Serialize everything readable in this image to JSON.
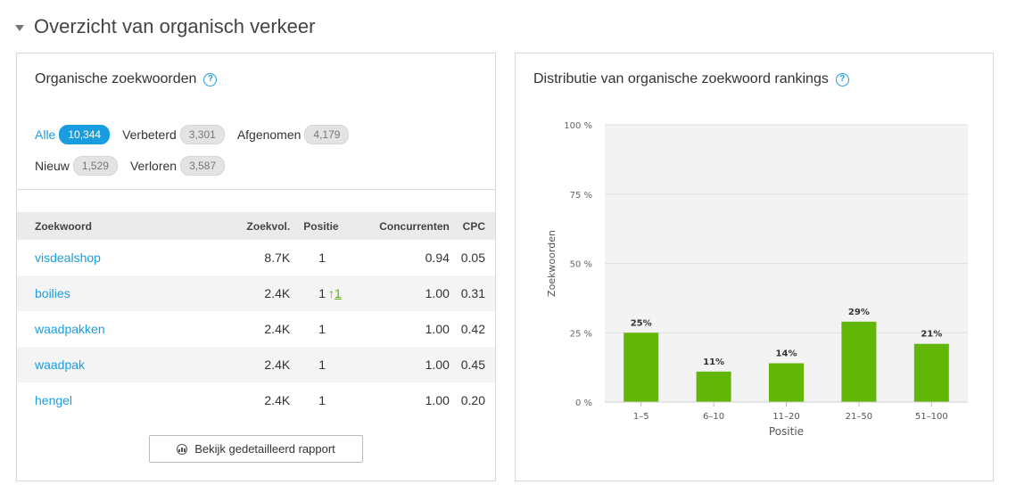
{
  "section": {
    "title": "Overzicht van organisch verkeer"
  },
  "keywords_card": {
    "title": "Organische zoekwoorden",
    "filters": [
      {
        "label": "Alle",
        "count": "10,344",
        "active": true
      },
      {
        "label": "Verbeterd",
        "count": "3,301",
        "active": false
      },
      {
        "label": "Afgenomen",
        "count": "4,179",
        "active": false
      },
      {
        "label": "Nieuw",
        "count": "1,529",
        "active": false
      },
      {
        "label": "Verloren",
        "count": "3,587",
        "active": false
      }
    ],
    "table": {
      "headers": {
        "keyword": "Zoekwoord",
        "volume": "Zoekvol.",
        "position": "Positie",
        "competition": "Concurrenten",
        "cpc": "CPC"
      },
      "rows": [
        {
          "keyword": "visdealshop",
          "volume": "8.7K",
          "position": "1",
          "change": "",
          "competition": "0.94",
          "cpc": "0.05"
        },
        {
          "keyword": "boilies",
          "volume": "2.4K",
          "position": "1",
          "change": "1",
          "competition": "1.00",
          "cpc": "0.31"
        },
        {
          "keyword": "waadpakken",
          "volume": "2.4K",
          "position": "1",
          "change": "",
          "competition": "1.00",
          "cpc": "0.42"
        },
        {
          "keyword": "waadpak",
          "volume": "2.4K",
          "position": "1",
          "change": "",
          "competition": "1.00",
          "cpc": "0.45"
        },
        {
          "keyword": "hengel",
          "volume": "2.4K",
          "position": "1",
          "change": "",
          "competition": "1.00",
          "cpc": "0.20"
        }
      ]
    },
    "report_button": "Bekijk gedetailleerd rapport"
  },
  "distribution_card": {
    "title": "Distributie van organische zoekwoord rankings"
  },
  "chart_data": {
    "type": "bar",
    "categories": [
      "1–5",
      "6–10",
      "11–20",
      "21–50",
      "51–100"
    ],
    "values": [
      25,
      11,
      14,
      29,
      21
    ],
    "value_labels": [
      "25%",
      "11%",
      "14%",
      "29%",
      "21%"
    ],
    "xlabel": "Positie",
    "ylabel": "Zoekwoorden",
    "ylim": [
      0,
      100
    ],
    "yticks": [
      0,
      25,
      50,
      75,
      100
    ],
    "ytick_labels": [
      "0 %",
      "25 %",
      "50 %",
      "75 %",
      "100 %"
    ],
    "bar_color": "#62b606",
    "grid": true
  }
}
